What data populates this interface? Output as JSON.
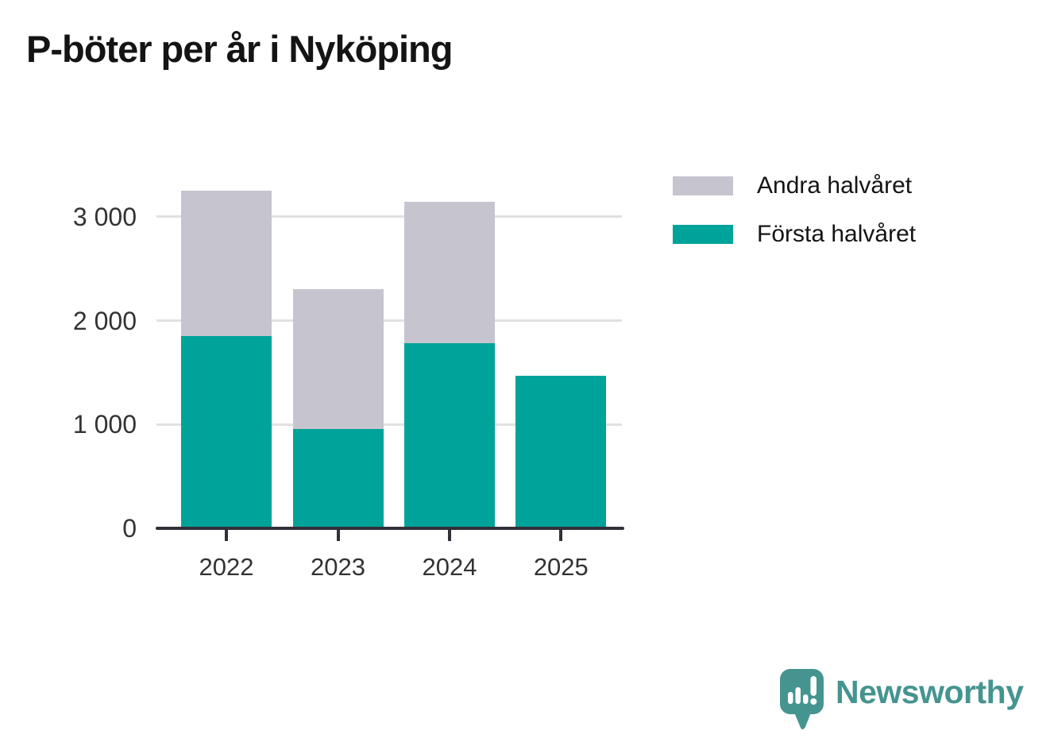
{
  "title": "P-böter per år i Nyköping",
  "legend": {
    "items": [
      {
        "label": "Andra halvåret",
        "color": "#c6c4ce"
      },
      {
        "label": "Första halvåret",
        "color": "#00a399"
      }
    ]
  },
  "chart_data": {
    "type": "bar",
    "stacked": true,
    "title": "P-böter per år i Nyköping",
    "categories": [
      "2022",
      "2023",
      "2024",
      "2025"
    ],
    "series": [
      {
        "name": "Första halvåret",
        "color": "#00a399",
        "values": [
          1855,
          955,
          1785,
          1470
        ]
      },
      {
        "name": "Andra halvåret",
        "color": "#c6c4ce",
        "values": [
          1395,
          1345,
          1360,
          0
        ]
      }
    ],
    "stack_totals": [
      3250,
      2300,
      3145,
      1470
    ],
    "ylim": [
      0,
      3560
    ],
    "yticks": [
      0,
      1000,
      2000,
      3000
    ],
    "ytick_labels": [
      "0",
      "1 000",
      "2 000",
      "3 000"
    ],
    "xlabel": "",
    "ylabel": "",
    "grid": "horizontal",
    "legend_position": "upper-right"
  },
  "colors": {
    "first_half": "#00a399",
    "second_half": "#c6c4ce",
    "axis": "#332f38",
    "grid": "#e1e0e4",
    "tick_text": "#333333",
    "title_text": "#141414",
    "legend_text": "#141414",
    "logo": "#459490",
    "background": "#ffffff"
  },
  "branding": {
    "logo_text": "Newsworthy"
  }
}
